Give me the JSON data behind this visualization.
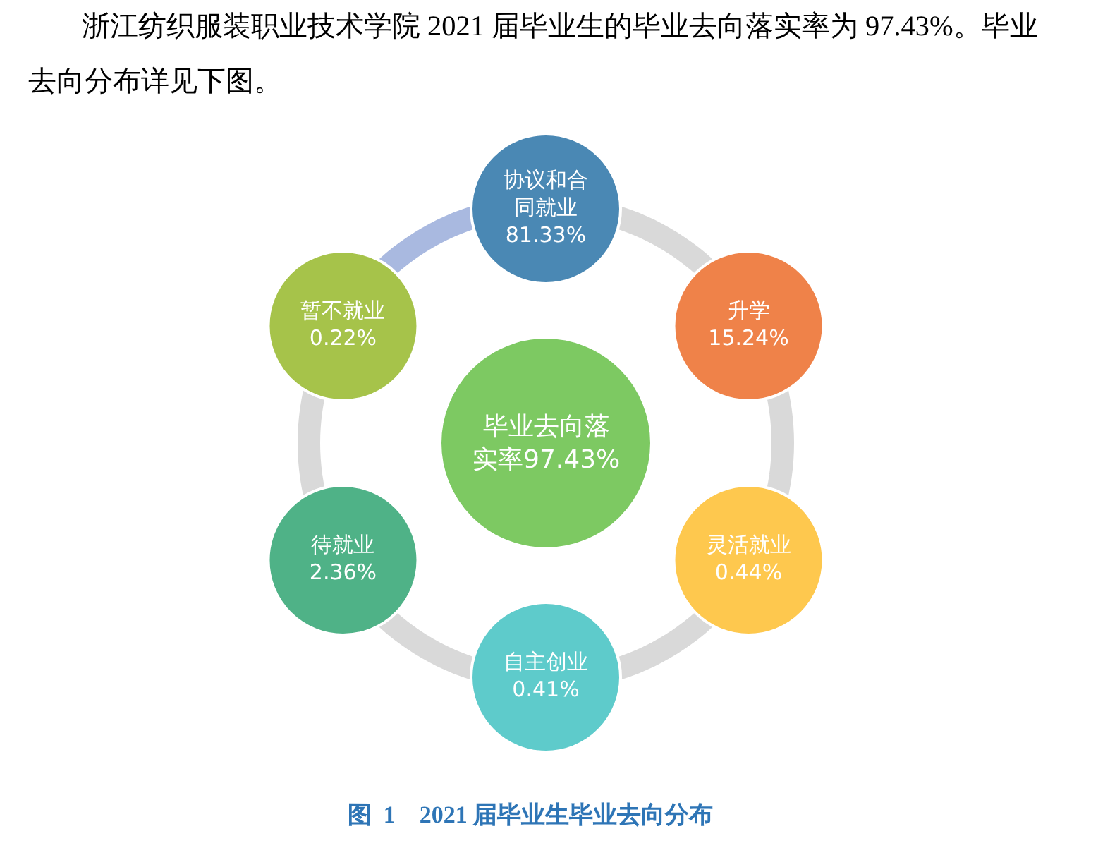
{
  "chart_data": {
    "type": "other",
    "subtitle": "浙江纺织服装职业技术学院 2021 届毕业生的毕业去向落实率为 97.43%。毕业去向分布详见下图。",
    "title": "图  1    2021 届毕业生毕业去向分布",
    "annotations": [
      "毕业去向落实率97.43%"
    ],
    "categories": [
      "协议和合同就业",
      "升学",
      "灵活就业",
      "自主创业",
      "待就业",
      "暂不就业"
    ],
    "values": [
      81.33,
      15.24,
      0.44,
      0.41,
      2.36,
      0.22
    ],
    "value_labels": [
      "81.33%",
      "15.24%",
      "0.44%",
      "0.41%",
      "2.36%",
      "0.22%"
    ],
    "colors": [
      "#4a88b4",
      "#ef8249",
      "#fec84e",
      "#5ecbcb",
      "#4fb287",
      "#a6c34a"
    ]
  }
}
